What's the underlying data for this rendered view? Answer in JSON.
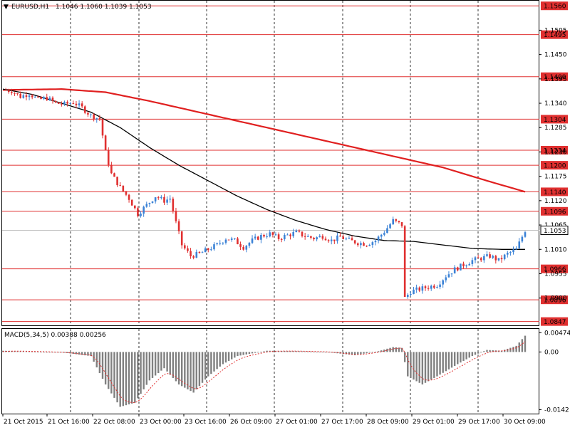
{
  "header": {
    "arrow_glyph": "▼",
    "symbol": "EURUSD,H1",
    "ohlc": "1.1046 1.1060 1.1039 1.1053"
  },
  "macd_header": "MACD(5,34,5) 0.00388 0.00256",
  "colors": {
    "bull": "#3b82d6",
    "bear": "#e03030",
    "grid": "#000000",
    "level_line": "#e03030",
    "ma_fast": "#000000",
    "ma_slow": "#e02020",
    "macd_hist": "#808080",
    "macd_signal": "#e03030",
    "current_price_tag": "#ffffff"
  },
  "price_axis": {
    "ticks": [
      {
        "label": "1.1505",
        "value": 1.1505
      },
      {
        "label": "1.1450",
        "value": 1.145
      },
      {
        "label": "1.1395",
        "value": 1.1395
      },
      {
        "label": "1.1340",
        "value": 1.134
      },
      {
        "label": "1.1285",
        "value": 1.1285
      },
      {
        "label": "1.1230",
        "value": 1.123
      },
      {
        "label": "1.1175",
        "value": 1.1175
      },
      {
        "label": "1.1120",
        "value": 1.112
      },
      {
        "label": "1.1065",
        "value": 1.1065
      },
      {
        "label": "1.1010",
        "value": 1.101
      },
      {
        "label": "1.0955",
        "value": 1.0955
      },
      {
        "label": "1.0900",
        "value": 1.09
      }
    ],
    "levels": [
      {
        "label": "1.1560",
        "value": 1.156
      },
      {
        "label": "1.1495",
        "value": 1.1495
      },
      {
        "label": "1.1400",
        "value": 1.14
      },
      {
        "label": "1.1304",
        "value": 1.1304
      },
      {
        "label": "1.1234",
        "value": 1.1234
      },
      {
        "label": "1.1200",
        "value": 1.12
      },
      {
        "label": "1.1140",
        "value": 1.114
      },
      {
        "label": "1.1096",
        "value": 1.1096
      },
      {
        "label": "1.0966",
        "value": 1.0966
      },
      {
        "label": "1.0896",
        "value": 1.0896
      },
      {
        "label": "1.0847",
        "value": 1.0847
      }
    ],
    "current": {
      "label": "1.1053",
      "value": 1.1053
    }
  },
  "macd_axis": {
    "ticks": [
      {
        "label": "0.00474",
        "value": 0.00474
      },
      {
        "label": "0.00",
        "value": 0.0
      },
      {
        "label": "-0.0142",
        "value": -0.0142
      }
    ]
  },
  "time_axis": {
    "labels": [
      "21 Oct 2015",
      "21 Oct 16:00",
      "22 Oct 08:00",
      "23 Oct 00:00",
      "23 Oct 16:00",
      "26 Oct 09:00",
      "27 Oct 01:00",
      "27 Oct 17:00",
      "28 Oct 09:00",
      "29 Oct 01:00",
      "29 Oct 17:00",
      "30 Oct 09:00"
    ]
  },
  "chart_data": {
    "type": "candlestick",
    "symbol": "EURUSD",
    "timeframe": "H1",
    "ylim": [
      1.084,
      1.157
    ],
    "price_path": [
      [
        0,
        1.137
      ],
      [
        3,
        1.1368
      ],
      [
        6,
        1.1355
      ],
      [
        9,
        1.1362
      ],
      [
        12,
        1.1348
      ],
      [
        15,
        1.1352
      ],
      [
        18,
        1.134
      ],
      [
        21,
        1.1338
      ],
      [
        24,
        1.1342
      ],
      [
        27,
        1.133
      ],
      [
        30,
        1.1312
      ],
      [
        33,
        1.1305
      ],
      [
        35,
        1.123
      ],
      [
        37,
        1.118
      ],
      [
        40,
        1.115
      ],
      [
        43,
        1.1125
      ],
      [
        46,
        1.109
      ],
      [
        49,
        1.111
      ],
      [
        52,
        1.113
      ],
      [
        55,
        1.112
      ],
      [
        57,
        1.1125
      ],
      [
        59,
        1.107
      ],
      [
        61,
        1.102
      ],
      [
        64,
        1.0995
      ],
      [
        67,
        1.1
      ],
      [
        70,
        1.101
      ],
      [
        73,
        1.102
      ],
      [
        76,
        1.1035
      ],
      [
        79,
        1.103
      ],
      [
        82,
        1.1015
      ],
      [
        85,
        1.103
      ],
      [
        88,
        1.104
      ],
      [
        91,
        1.1045
      ],
      [
        94,
        1.1035
      ],
      [
        97,
        1.1042
      ],
      [
        100,
        1.1048
      ],
      [
        103,
        1.104
      ],
      [
        106,
        1.1035
      ],
      [
        109,
        1.104
      ],
      [
        112,
        1.103
      ],
      [
        115,
        1.1038
      ],
      [
        118,
        1.103
      ],
      [
        121,
        1.1025
      ],
      [
        124,
        1.1022
      ],
      [
        127,
        1.103
      ],
      [
        130,
        1.105
      ],
      [
        133,
        1.1075
      ],
      [
        136,
        1.1065
      ],
      [
        137,
        1.09
      ],
      [
        139,
        1.0915
      ],
      [
        142,
        1.092
      ],
      [
        145,
        1.0925
      ],
      [
        148,
        1.093
      ],
      [
        151,
        1.095
      ],
      [
        154,
        1.0965
      ],
      [
        157,
        1.0975
      ],
      [
        160,
        1.0985
      ],
      [
        163,
        1.099
      ],
      [
        166,
        1.0995
      ],
      [
        169,
        1.0985
      ],
      [
        172,
        1.1
      ],
      [
        175,
        1.101
      ],
      [
        178,
        1.1053
      ]
    ],
    "ma_fast_path": [
      [
        0,
        1.1372
      ],
      [
        10,
        1.136
      ],
      [
        20,
        1.134
      ],
      [
        30,
        1.132
      ],
      [
        40,
        1.1285
      ],
      [
        50,
        1.124
      ],
      [
        60,
        1.12
      ],
      [
        70,
        1.1165
      ],
      [
        80,
        1.113
      ],
      [
        90,
        1.11
      ],
      [
        100,
        1.1075
      ],
      [
        110,
        1.1055
      ],
      [
        120,
        1.104
      ],
      [
        130,
        1.103
      ],
      [
        140,
        1.1028
      ],
      [
        150,
        1.102
      ],
      [
        160,
        1.1012
      ],
      [
        170,
        1.101
      ],
      [
        178,
        1.101
      ]
    ],
    "ma_slow_path": [
      [
        0,
        1.137
      ],
      [
        20,
        1.1372
      ],
      [
        35,
        1.1365
      ],
      [
        50,
        1.1345
      ],
      [
        70,
        1.1315
      ],
      [
        90,
        1.1285
      ],
      [
        110,
        1.1255
      ],
      [
        130,
        1.1225
      ],
      [
        150,
        1.1195
      ],
      [
        165,
        1.1165
      ],
      [
        178,
        1.114
      ]
    ],
    "macd_ylim": [
      -0.015,
      0.0055
    ],
    "macd_hist_path": [
      [
        0,
        0.0003
      ],
      [
        10,
        0.0001
      ],
      [
        20,
        -0.0001
      ],
      [
        30,
        -0.001
      ],
      [
        35,
        -0.008
      ],
      [
        40,
        -0.0135
      ],
      [
        45,
        -0.0125
      ],
      [
        50,
        -0.007
      ],
      [
        55,
        -0.004
      ],
      [
        60,
        -0.008
      ],
      [
        65,
        -0.01
      ],
      [
        70,
        -0.006
      ],
      [
        75,
        -0.003
      ],
      [
        80,
        -0.001
      ],
      [
        90,
        0.0003
      ],
      [
        100,
        0.0002
      ],
      [
        110,
        0.0
      ],
      [
        120,
        -0.0008
      ],
      [
        128,
        0.0002
      ],
      [
        133,
        0.0012
      ],
      [
        136,
        0.001
      ],
      [
        138,
        -0.006
      ],
      [
        143,
        -0.008
      ],
      [
        148,
        -0.006
      ],
      [
        155,
        -0.003
      ],
      [
        160,
        -0.001
      ],
      [
        165,
        0.0005
      ],
      [
        170,
        0.0003
      ],
      [
        175,
        0.0015
      ],
      [
        178,
        0.004
      ]
    ]
  }
}
